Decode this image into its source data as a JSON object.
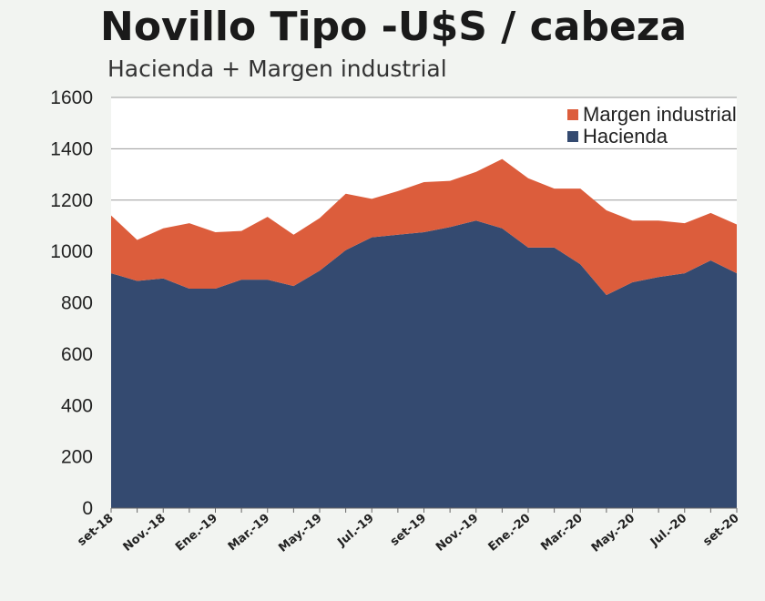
{
  "chart_data": {
    "type": "area",
    "stacked": true,
    "title": "Novillo Tipo  -U$S / cabeza",
    "subtitle": "Hacienda + Margen industrial",
    "xlabel": "",
    "ylabel": "",
    "ylim": [
      0,
      1600
    ],
    "yticks": [
      "0",
      "200",
      "400",
      "600",
      "800",
      "1000",
      "1200",
      "1400",
      "1600"
    ],
    "grid": true,
    "legend_position": "top-right",
    "categories": [
      "set-18",
      "oct-18",
      "Nov.-18",
      "dic-18",
      "Ene.-19",
      "feb-19",
      "Mar.-19",
      "abr-19",
      "May.-19",
      "jun-19",
      "Jul.-19",
      "ago-19",
      "set-19",
      "oct-19",
      "Nov.-19",
      "dic-19",
      "Ene.-20",
      "feb-20",
      "Mar.-20",
      "abr-20",
      "May.-20",
      "jun-20",
      "Jul.-20",
      "ago-20",
      "set-20"
    ],
    "xtick_labels": [
      "set-18",
      "Nov.-18",
      "Ene.-19",
      "Mar.-19",
      "May.-19",
      "Jul.-19",
      "set-19",
      "Nov.-19",
      "Ene.-20",
      "Mar.-20",
      "May.-20",
      "Jul.-20",
      "set-20"
    ],
    "series": [
      {
        "name": "Hacienda",
        "color": "#344a70",
        "values": [
          915,
          885,
          895,
          855,
          855,
          890,
          890,
          865,
          925,
          1005,
          1055,
          1065,
          1075,
          1095,
          1120,
          1090,
          1015,
          1015,
          950,
          830,
          880,
          900,
          915,
          965,
          915
        ]
      },
      {
        "name": "Margen industrial",
        "color": "#dc5d3c",
        "values": [
          225,
          160,
          195,
          255,
          220,
          190,
          245,
          200,
          205,
          220,
          150,
          170,
          195,
          180,
          190,
          270,
          270,
          230,
          295,
          330,
          240,
          220,
          195,
          185,
          190
        ]
      }
    ]
  }
}
